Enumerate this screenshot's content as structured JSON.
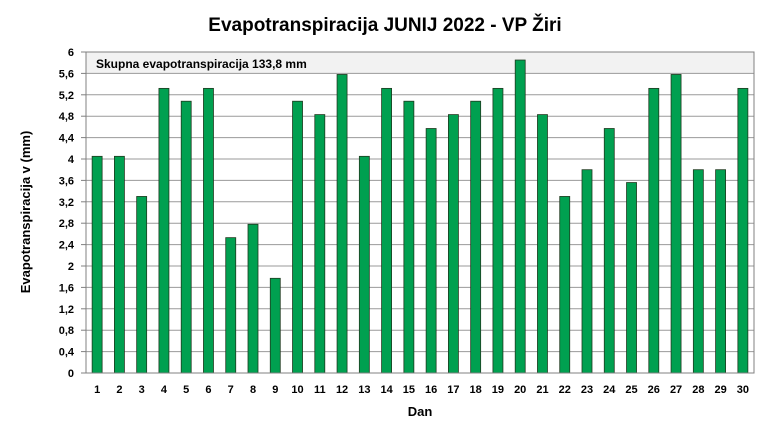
{
  "chart_data": {
    "type": "bar",
    "title": "Evapotranspiracija  JUNIJ 2022 - VP Žiri",
    "xlabel": "Dan",
    "ylabel": "Evapotranspiracija v  (mm)",
    "annotation": "Skupna evapotranspiracija  133,8 mm",
    "ylim": [
      0,
      6
    ],
    "ytick_step": 0.4,
    "yticks": [
      "0",
      "0,4",
      "0,8",
      "1,2",
      "1,6",
      "2",
      "2,4",
      "2,8",
      "3,2",
      "3,6",
      "4",
      "4,4",
      "4,8",
      "5,2",
      "5,6",
      "6"
    ],
    "grid": true,
    "bar_color": "#00a050",
    "categories": [
      "1",
      "2",
      "3",
      "4",
      "5",
      "6",
      "7",
      "8",
      "9",
      "10",
      "11",
      "12",
      "13",
      "14",
      "15",
      "16",
      "17",
      "18",
      "19",
      "20",
      "21",
      "22",
      "23",
      "24",
      "25",
      "26",
      "27",
      "28",
      "29",
      "30"
    ],
    "values": [
      4.05,
      4.05,
      3.3,
      5.32,
      5.08,
      5.32,
      2.53,
      2.78,
      1.77,
      5.08,
      4.83,
      5.58,
      4.05,
      5.32,
      5.08,
      4.57,
      4.83,
      5.08,
      5.32,
      5.85,
      4.83,
      3.3,
      3.8,
      4.57,
      3.56,
      5.32,
      5.58,
      3.8,
      3.8,
      5.32
    ]
  }
}
